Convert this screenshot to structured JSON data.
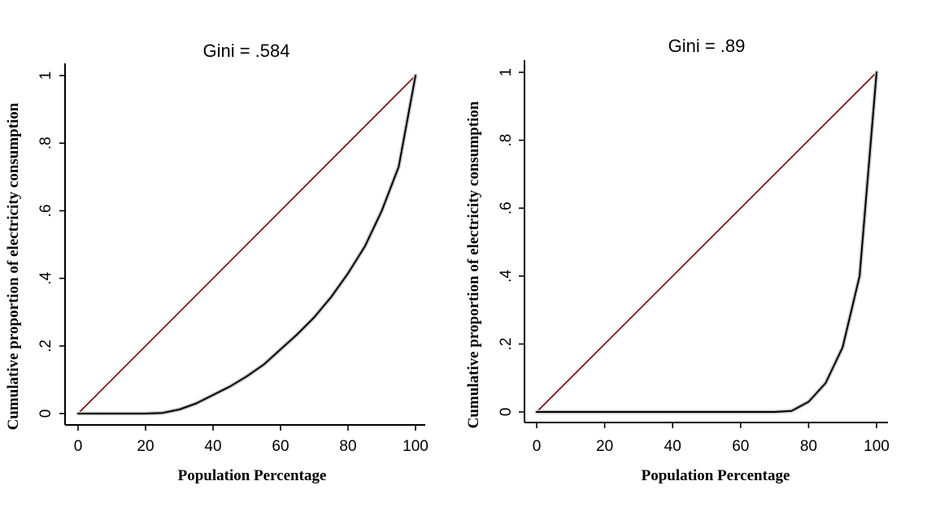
{
  "chart_data": [
    {
      "type": "line",
      "title": "Gini = .584",
      "xlabel": "Population Percentage",
      "ylabel": "Cumulative proportion of electricity consumption",
      "xlim": [
        0,
        100
      ],
      "ylim": [
        0,
        1
      ],
      "xticks": [
        "0",
        "20",
        "40",
        "60",
        "80",
        "100"
      ],
      "yticks": [
        "0",
        ".2",
        ".4",
        ".6",
        ".8",
        "1"
      ],
      "grid": false,
      "series": [
        {
          "role": "equality-line",
          "color": "#7a0000",
          "x": [
            0,
            100
          ],
          "y": [
            0,
            1
          ]
        },
        {
          "role": "lorenz-curve",
          "color": "#000000",
          "x": [
            0,
            5,
            10,
            15,
            20,
            25,
            30,
            35,
            40,
            45,
            50,
            55,
            60,
            65,
            70,
            75,
            80,
            85,
            90,
            95,
            100
          ],
          "y": [
            0,
            0,
            0,
            0,
            0,
            0.002,
            0.012,
            0.03,
            0.055,
            0.08,
            0.11,
            0.145,
            0.19,
            0.235,
            0.285,
            0.345,
            0.415,
            0.495,
            0.6,
            0.73,
            1.0
          ]
        }
      ]
    },
    {
      "type": "line",
      "title": "Gini = .89",
      "xlabel": "Population Percentage",
      "ylabel": "Cumulative proportion of electricity consumption",
      "xlim": [
        0,
        100
      ],
      "ylim": [
        0,
        1
      ],
      "xticks": [
        "0",
        "20",
        "40",
        "60",
        "80",
        "100"
      ],
      "yticks": [
        "0",
        ".2",
        ".4",
        ".6",
        ".8",
        "1"
      ],
      "grid": false,
      "series": [
        {
          "role": "equality-line",
          "color": "#7a0000",
          "x": [
            0,
            100
          ],
          "y": [
            0,
            1
          ]
        },
        {
          "role": "lorenz-curve",
          "color": "#000000",
          "x": [
            0,
            10,
            20,
            30,
            40,
            50,
            60,
            70,
            75,
            80,
            85,
            90,
            95,
            100
          ],
          "y": [
            0,
            0,
            0,
            0,
            0,
            0,
            0,
            0,
            0.003,
            0.03,
            0.085,
            0.19,
            0.4,
            1.0
          ]
        }
      ]
    }
  ]
}
